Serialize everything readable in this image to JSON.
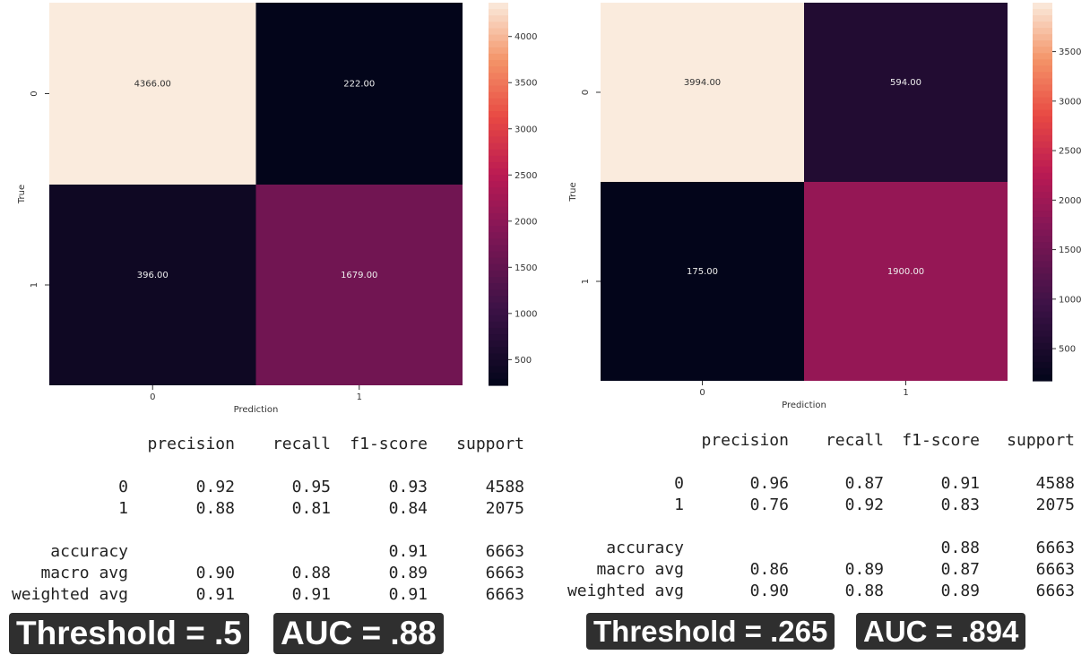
{
  "chart_data": [
    {
      "type": "heatmap",
      "xlabel": "Prediction",
      "ylabel": "True",
      "x_ticks": [
        "0",
        "1"
      ],
      "y_ticks": [
        "0",
        "1"
      ],
      "cells": [
        [
          4366.0,
          222.0
        ],
        [
          396.0,
          1679.0
        ]
      ],
      "cell_labels": [
        [
          "4366.00",
          "222.00"
        ],
        [
          "396.00",
          "1679.00"
        ]
      ],
      "colorbar": {
        "range": [
          222,
          4366
        ],
        "ticks": [
          500,
          1000,
          1500,
          2000,
          2500,
          3000,
          3500,
          4000
        ]
      },
      "report": {
        "headers": [
          "precision",
          "recall",
          "f1-score",
          "support"
        ],
        "rows": [
          [
            "0",
            "0.92",
            "0.95",
            "0.93",
            "4588"
          ],
          [
            "1",
            "0.88",
            "0.81",
            "0.84",
            "2075"
          ],
          [
            "accuracy",
            "",
            "",
            "0.91",
            "6663"
          ],
          [
            "macro avg",
            "0.90",
            "0.88",
            "0.89",
            "6663"
          ],
          [
            "weighted avg",
            "0.91",
            "0.91",
            "0.91",
            "6663"
          ]
        ]
      },
      "badges": [
        "Threshold = .5",
        "AUC = .88"
      ]
    },
    {
      "type": "heatmap",
      "xlabel": "Prediction",
      "ylabel": "True",
      "x_ticks": [
        "0",
        "1"
      ],
      "y_ticks": [
        "0",
        "1"
      ],
      "cells": [
        [
          3994.0,
          594.0
        ],
        [
          175.0,
          1900.0
        ]
      ],
      "cell_labels": [
        [
          "3994.00",
          "594.00"
        ],
        [
          "175.00",
          "1900.00"
        ]
      ],
      "colorbar": {
        "range": [
          175,
          3994
        ],
        "ticks": [
          500,
          1000,
          1500,
          2000,
          2500,
          3000,
          3500
        ]
      },
      "report": {
        "headers": [
          "precision",
          "recall",
          "f1-score",
          "support"
        ],
        "rows": [
          [
            "0",
            "0.96",
            "0.87",
            "0.91",
            "4588"
          ],
          [
            "1",
            "0.76",
            "0.92",
            "0.83",
            "2075"
          ],
          [
            "accuracy",
            "",
            "",
            "0.88",
            "6663"
          ],
          [
            "macro avg",
            "0.86",
            "0.89",
            "0.87",
            "6663"
          ],
          [
            "weighted avg",
            "0.90",
            "0.88",
            "0.89",
            "6663"
          ]
        ]
      },
      "badges": [
        "Threshold = .265",
        "AUC = .894"
      ]
    }
  ]
}
